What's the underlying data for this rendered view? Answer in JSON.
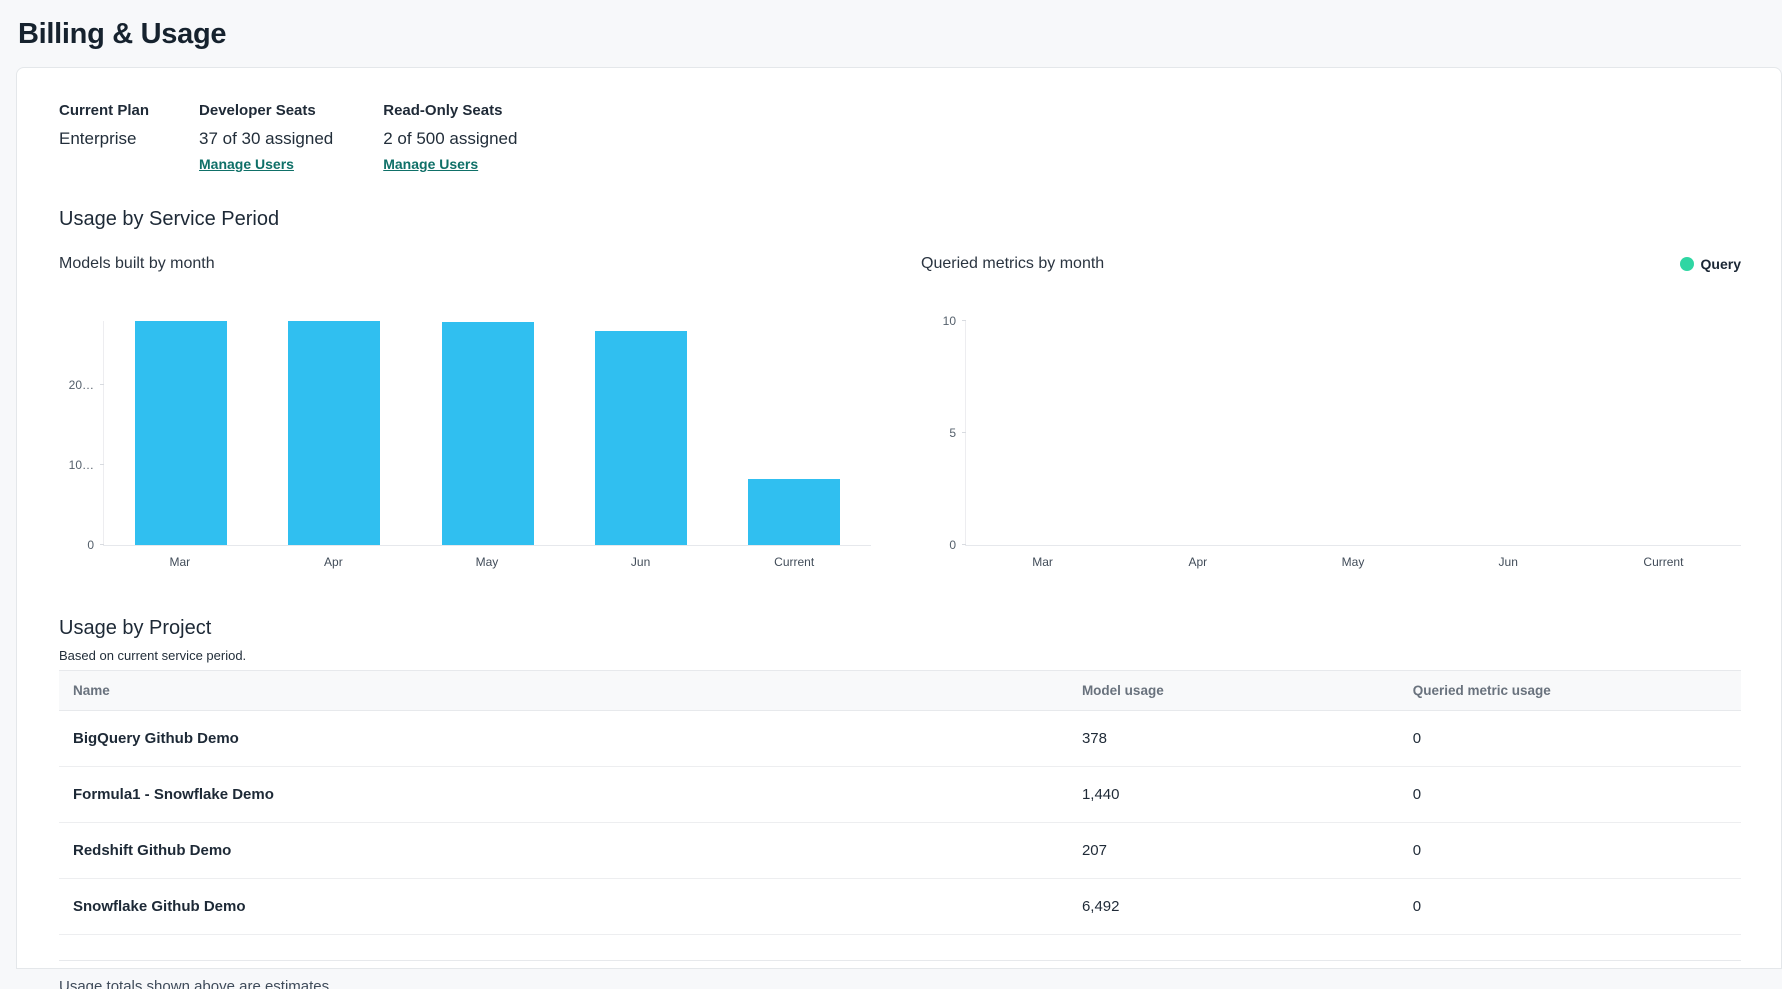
{
  "header": {
    "title": "Billing & Usage"
  },
  "plan": {
    "columns": [
      {
        "label": "Current Plan",
        "value": "Enterprise",
        "link": null
      },
      {
        "label": "Developer Seats",
        "value": "37 of 30 assigned",
        "link": "Manage Users"
      },
      {
        "label": "Read-Only Seats",
        "value": "2 of 500 assigned",
        "link": "Manage Users"
      }
    ]
  },
  "sections": {
    "service_period_title": "Usage by Service Period",
    "project_title": "Usage by Project",
    "project_subtitle": "Based on current service period."
  },
  "chart_data": [
    {
      "type": "bar",
      "title": "Models built by month",
      "categories": [
        "Mar",
        "Apr",
        "May",
        "Jun",
        "Current"
      ],
      "series": [
        {
          "name": "Models built",
          "values": [
            28000,
            28000,
            27900,
            26700,
            8300
          ]
        }
      ],
      "xlabel": "",
      "ylabel": "",
      "ylim": [
        0,
        28000
      ],
      "yticks": [
        {
          "value": 0,
          "label": "0"
        },
        {
          "value": 10000,
          "label": "10…"
        },
        {
          "value": 20000,
          "label": "20…"
        }
      ],
      "bar_color": "#30bff0",
      "grid": false,
      "legend_position": "none"
    },
    {
      "type": "bar",
      "title": "Queried metrics by month",
      "categories": [
        "Mar",
        "Apr",
        "May",
        "Jun",
        "Current"
      ],
      "series": [
        {
          "name": "Query",
          "values": [
            0,
            0,
            0,
            0,
            0
          ]
        }
      ],
      "xlabel": "",
      "ylabel": "",
      "ylim": [
        0,
        10
      ],
      "yticks": [
        {
          "value": 0,
          "label": "0"
        },
        {
          "value": 5,
          "label": "5"
        },
        {
          "value": 10,
          "label": "10"
        }
      ],
      "bar_color": "#2fd6a3",
      "grid": false,
      "legend_position": "top-right",
      "legend": {
        "label": "Query",
        "color": "#2fd6a3"
      }
    }
  ],
  "table": {
    "columns": [
      "Name",
      "Model usage",
      "Queried metric usage"
    ],
    "rows": [
      {
        "name": "BigQuery Github Demo",
        "model_usage": "378",
        "queried_metric_usage": "0"
      },
      {
        "name": "Formula1 - Snowflake Demo",
        "model_usage": "1,440",
        "queried_metric_usage": "0"
      },
      {
        "name": "Redshift Github Demo",
        "model_usage": "207",
        "queried_metric_usage": "0"
      },
      {
        "name": "Snowflake Github Demo",
        "model_usage": "6,492",
        "queried_metric_usage": "0"
      }
    ]
  },
  "footer": {
    "note": "Usage totals shown above are estimates."
  },
  "colors": {
    "bar_cyan": "#30bff0",
    "legend_green": "#2fd6a3",
    "link_teal": "#0f7068",
    "page_bg": "#f7f8fa"
  }
}
